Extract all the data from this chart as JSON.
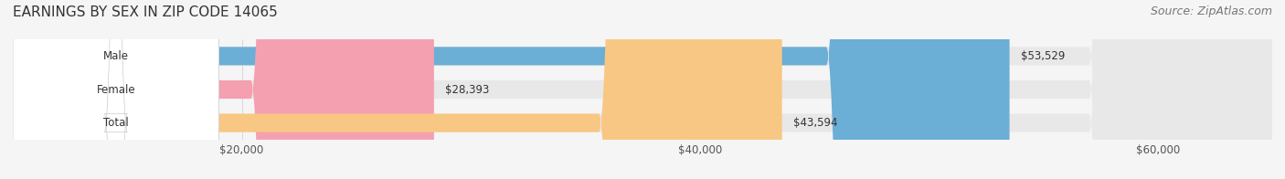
{
  "title": "EARNINGS BY SEX IN ZIP CODE 14065",
  "source": "Source: ZipAtlas.com",
  "categories": [
    "Male",
    "Female",
    "Total"
  ],
  "values": [
    53529,
    28393,
    43594
  ],
  "bar_colors": [
    "#6baed6",
    "#f4a0b0",
    "#f9c784"
  ],
  "bar_labels": [
    "$53,529",
    "$28,393",
    "$43,594"
  ],
  "xlim": [
    10000,
    65000
  ],
  "xticks": [
    20000,
    40000,
    60000
  ],
  "xticklabels": [
    "$20,000",
    "$40,000",
    "$60,000"
  ],
  "background_color": "#f5f5f5",
  "bar_bg_color": "#e8e8e8",
  "label_bg_color": "#ffffff",
  "title_fontsize": 11,
  "source_fontsize": 9,
  "bar_height": 0.55,
  "figsize": [
    14.06,
    1.96
  ],
  "dpi": 100
}
